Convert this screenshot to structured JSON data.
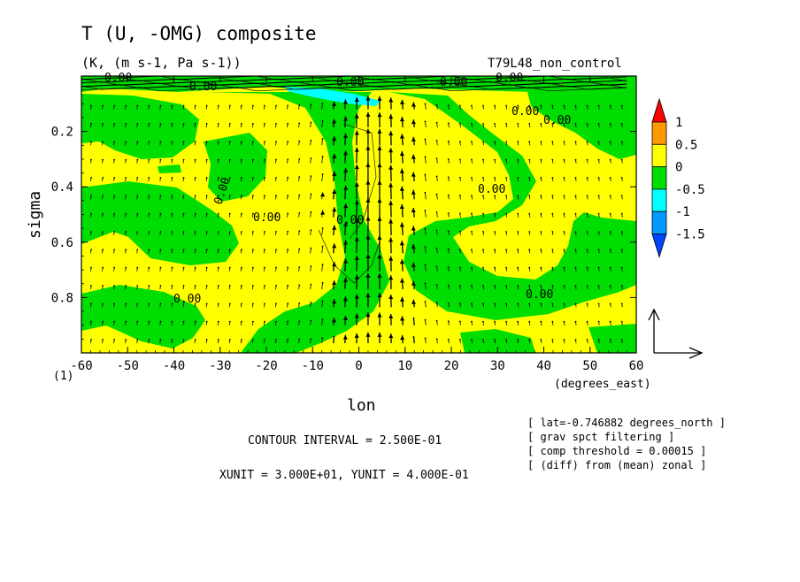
{
  "chart_data": {
    "type": "heatmap",
    "title": "T (U, -OMG) composite",
    "units": "(K, (m s-1, Pa s-1))",
    "run": "T79L48_non_control",
    "xlabel": "lon",
    "xunits": "(degrees_east)",
    "ylabel": "sigma",
    "xlim": [
      -60,
      60
    ],
    "ylim": [
      1.0,
      0.0
    ],
    "y_axis_reversed": true,
    "x_ticks": [
      "-60",
      "-50",
      "-40",
      "-30",
      "-20",
      "-10",
      "0",
      "10",
      "20",
      "30",
      "40",
      "50",
      "60"
    ],
    "y_ticks": [
      "0.2",
      "0.4",
      "0.6",
      "0.8"
    ],
    "footnote": "(1)",
    "colorbar": {
      "labels": [
        "1",
        "0.5",
        "0",
        "-0.5",
        "-1",
        "-1.5"
      ],
      "levels": [
        1,
        0.5,
        0,
        -0.5,
        -1,
        -1.5
      ],
      "colors": [
        "#ff0000",
        "#ff9900",
        "#ffff00",
        "#00dd00",
        "#00ffff",
        "#0099ff",
        "#0044ff"
      ]
    },
    "contour_labels": [
      "0.00",
      "0.00",
      "0.00",
      "0.00",
      "0.00",
      "0.00",
      "0.00",
      "0.00",
      "0.00",
      "0.00",
      "0.00",
      "0.00"
    ],
    "contour_interval": 0.25,
    "vector_unit_x": 30.0,
    "vector_unit_y": 0.4
  },
  "info": {
    "contour_interval": "CONTOUR INTERVAL = 2.500E-01",
    "units_line": "XUNIT = 3.000E+01, YUNIT = 4.000E-01",
    "notes": [
      "[ lat=-0.746882 degrees_north ]",
      "[ grav spct filtering ]",
      "[ comp threshold = 0.00015 ]",
      "[ (diff) from (mean) zonal ]"
    ]
  }
}
